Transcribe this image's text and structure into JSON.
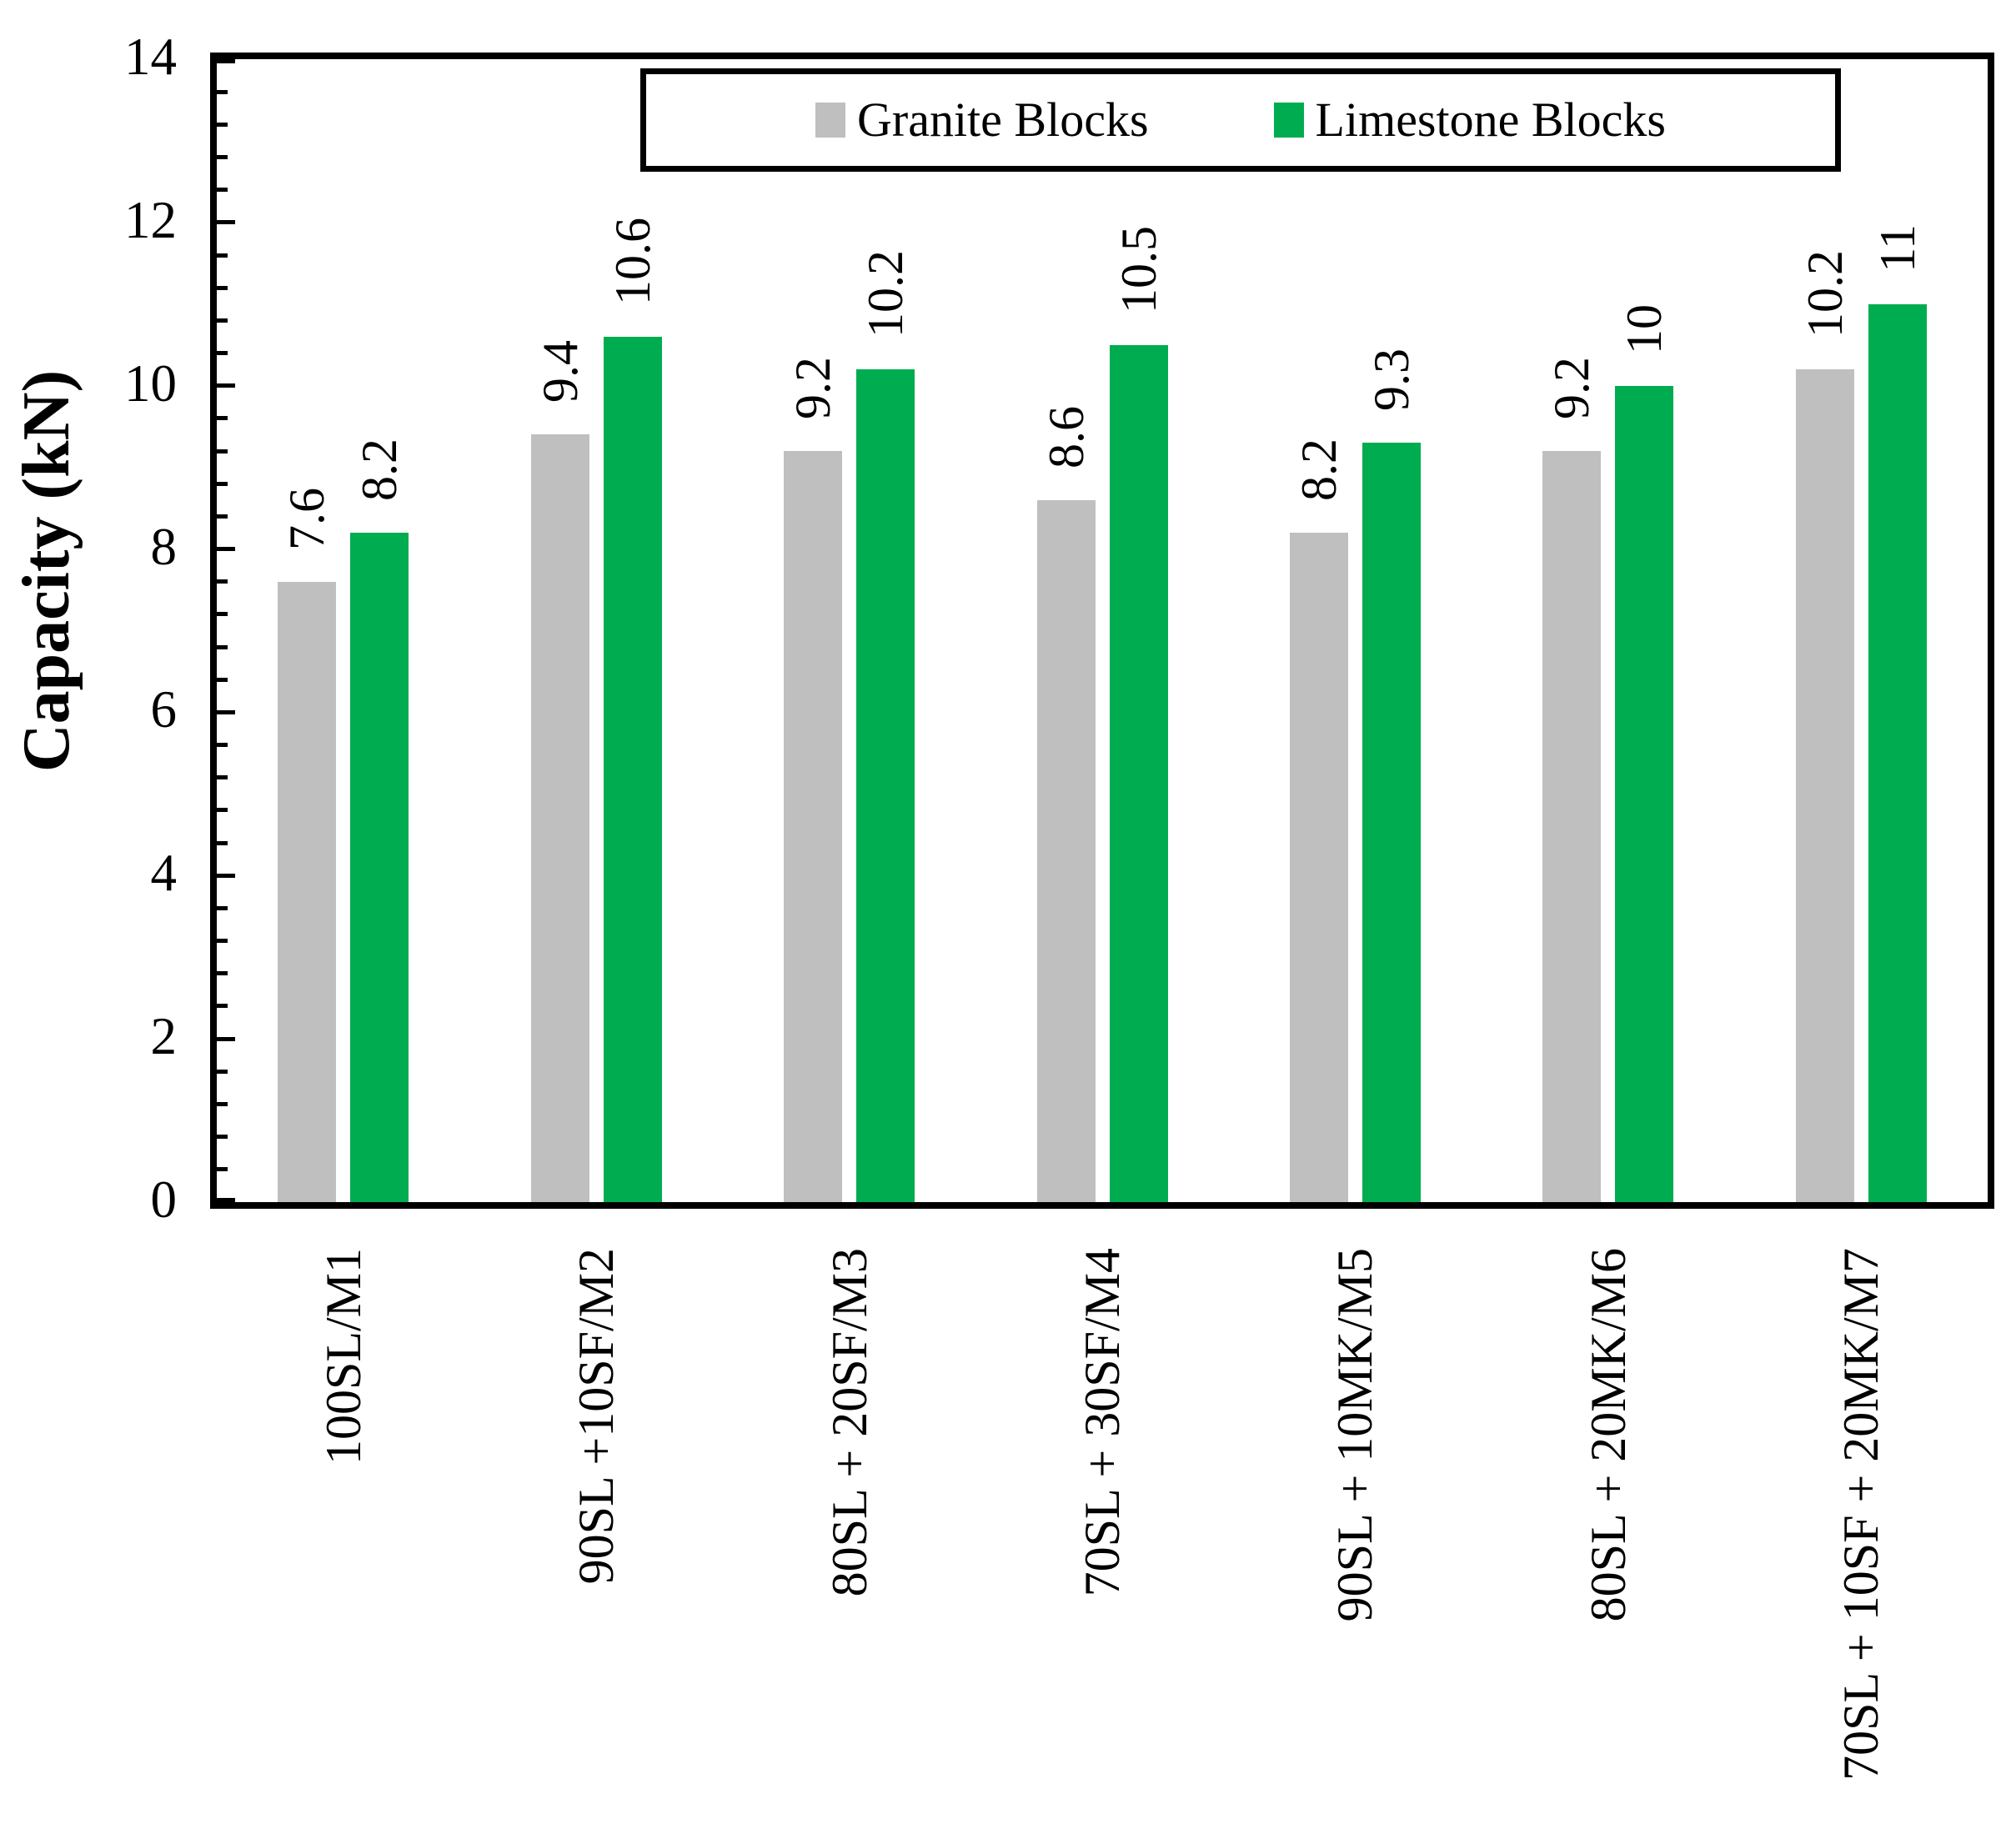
{
  "chart_data": {
    "type": "bar",
    "title": "",
    "xlabel": "",
    "ylabel": "Capacity (kN)",
    "ylim": [
      0,
      14
    ],
    "y_major_ticks": [
      0,
      2,
      4,
      6,
      8,
      10,
      12,
      14
    ],
    "y_minor_step": 0.4,
    "grid": false,
    "legend_position": "top-inside",
    "categories": [
      "100SL/M1",
      "90SL +10SF/M2",
      "80SL + 20SF/M3",
      "70SL + 30SF/M4",
      "90SL + 10MK/M5",
      "80SL + 20MK/M6",
      "70SL + 10SF + 20MK/M7"
    ],
    "series": [
      {
        "name": "Granite Blocks",
        "color": "#BFBFBF",
        "values": [
          7.6,
          9.4,
          9.2,
          8.6,
          8.2,
          9.2,
          10.2
        ],
        "value_labels": [
          "7.6",
          "9.4",
          "9.2",
          "8.6",
          "8.2",
          "9.2",
          "10.2"
        ]
      },
      {
        "name": "Limestone Blocks",
        "color": "#00AC50",
        "values": [
          8.2,
          10.6,
          10.2,
          10.5,
          9.3,
          10,
          11
        ],
        "value_labels": [
          "8.2",
          "10.6",
          "10.2",
          "10.5",
          "9.3",
          "10",
          "11"
        ]
      }
    ]
  },
  "legend": {
    "items": [
      {
        "label": "Granite Blocks",
        "color": "#BFBFBF"
      },
      {
        "label": "Limestone Blocks",
        "color": "#00AC50"
      }
    ]
  },
  "axis": {
    "tick_color": "#000000",
    "frame_color": "#000000"
  }
}
